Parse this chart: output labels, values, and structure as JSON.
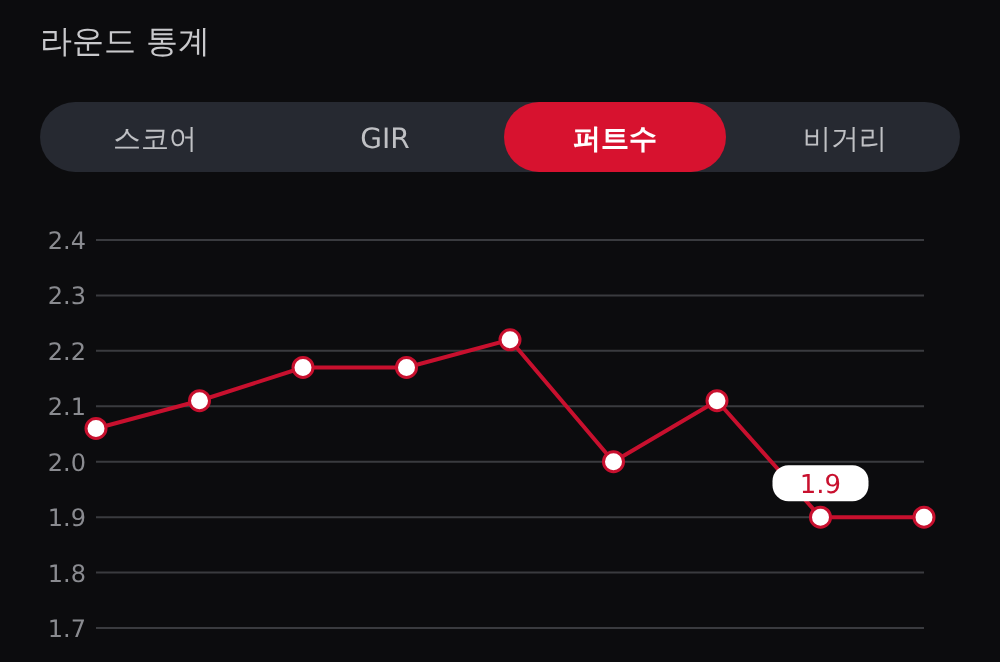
{
  "chart_data": {
    "type": "line",
    "title": "라운드 통계",
    "annotations": [
      "스코어",
      "GIR",
      "퍼트수",
      "비거리"
    ],
    "categories": [
      null,
      null,
      null,
      null,
      null,
      null,
      null,
      null,
      null
    ],
    "series": [
      {
        "color": "#c8102e",
        "values": [
          2.06,
          2.11,
          2.17,
          2.17,
          2.22,
          2.0,
          2.11,
          1.9,
          1.9
        ],
        "value_labels": [
          null,
          null,
          null,
          null,
          null,
          null,
          null,
          "1.9",
          null
        ]
      }
    ],
    "ylim": [
      1.7,
      2.4
    ],
    "yticks": [
      {
        "value": 1.7,
        "label": "1.7"
      },
      {
        "value": 1.8,
        "label": "1.8"
      },
      {
        "value": 1.9,
        "label": "1.9"
      },
      {
        "value": 2.0,
        "label": "2.0"
      },
      {
        "value": 2.1,
        "label": "2.1"
      },
      {
        "value": 2.2,
        "label": "2.2"
      },
      {
        "value": 2.3,
        "label": "2.3"
      },
      {
        "value": 2.4,
        "label": "2.4"
      }
    ],
    "grid": "y",
    "marker": "circle",
    "line_style": "solid",
    "tick_labels": "y"
  }
}
